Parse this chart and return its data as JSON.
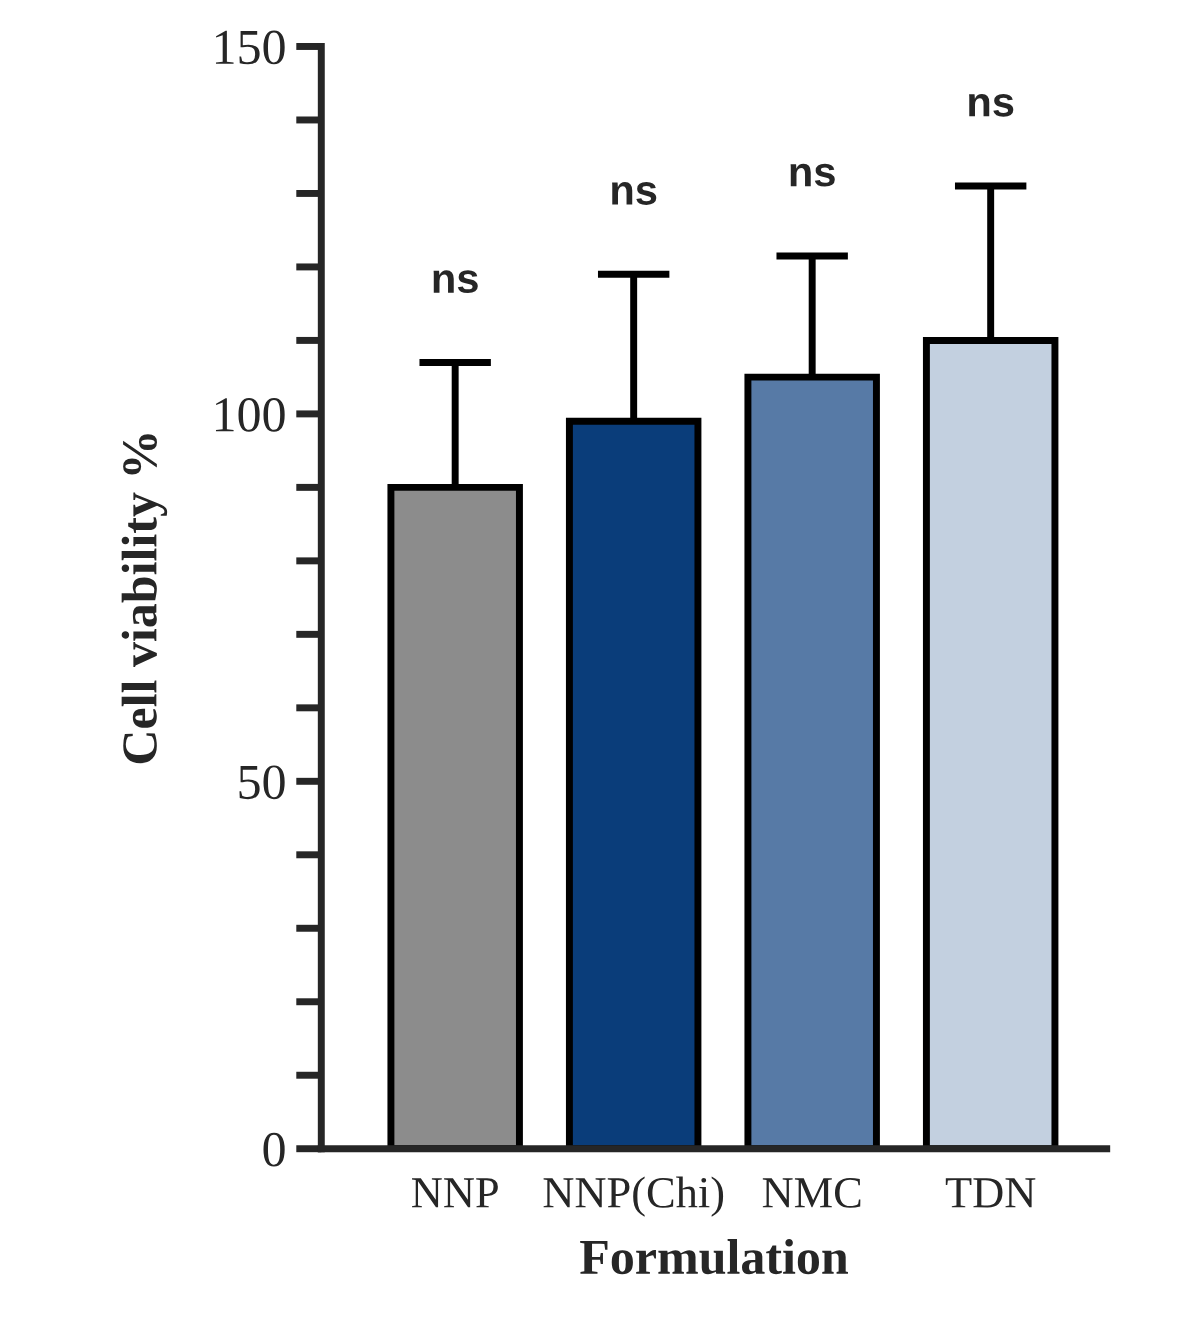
{
  "chart_data": {
    "type": "bar",
    "xlabel": "Formulation",
    "ylabel": "Cell viability %",
    "categories": [
      "NNP",
      "NNP(Chi)",
      "NMC",
      "TDN"
    ],
    "values": [
      90,
      99,
      105,
      110
    ],
    "colors": [
      "#8c8c8c",
      "#0a3d7a",
      "#577aa6",
      "#c3d0e0"
    ],
    "errors": [
      [
        90,
        107
      ],
      [
        99,
        119
      ],
      [
        105,
        121.5
      ],
      [
        110,
        131
      ]
    ],
    "ylim": [
      0,
      150
    ],
    "yticks": [
      0,
      {
        "value": 10,
        "label": null
      },
      {
        "value": 20,
        "label": null
      },
      {
        "value": 30,
        "label": null
      },
      {
        "value": 40,
        "label": null
      },
      50,
      {
        "value": 60,
        "label": null
      },
      {
        "value": 70,
        "label": null
      },
      {
        "value": 80,
        "label": null
      },
      {
        "value": 90,
        "label": null
      },
      100,
      {
        "value": 110,
        "label": null
      },
      {
        "value": 120,
        "label": null
      },
      {
        "value": 130,
        "label": null
      },
      {
        "value": 140,
        "label": null
      },
      150
    ],
    "annotations": [
      "ns",
      "ns",
      "ns",
      "ns"
    ],
    "grid": false,
    "legend": false
  }
}
